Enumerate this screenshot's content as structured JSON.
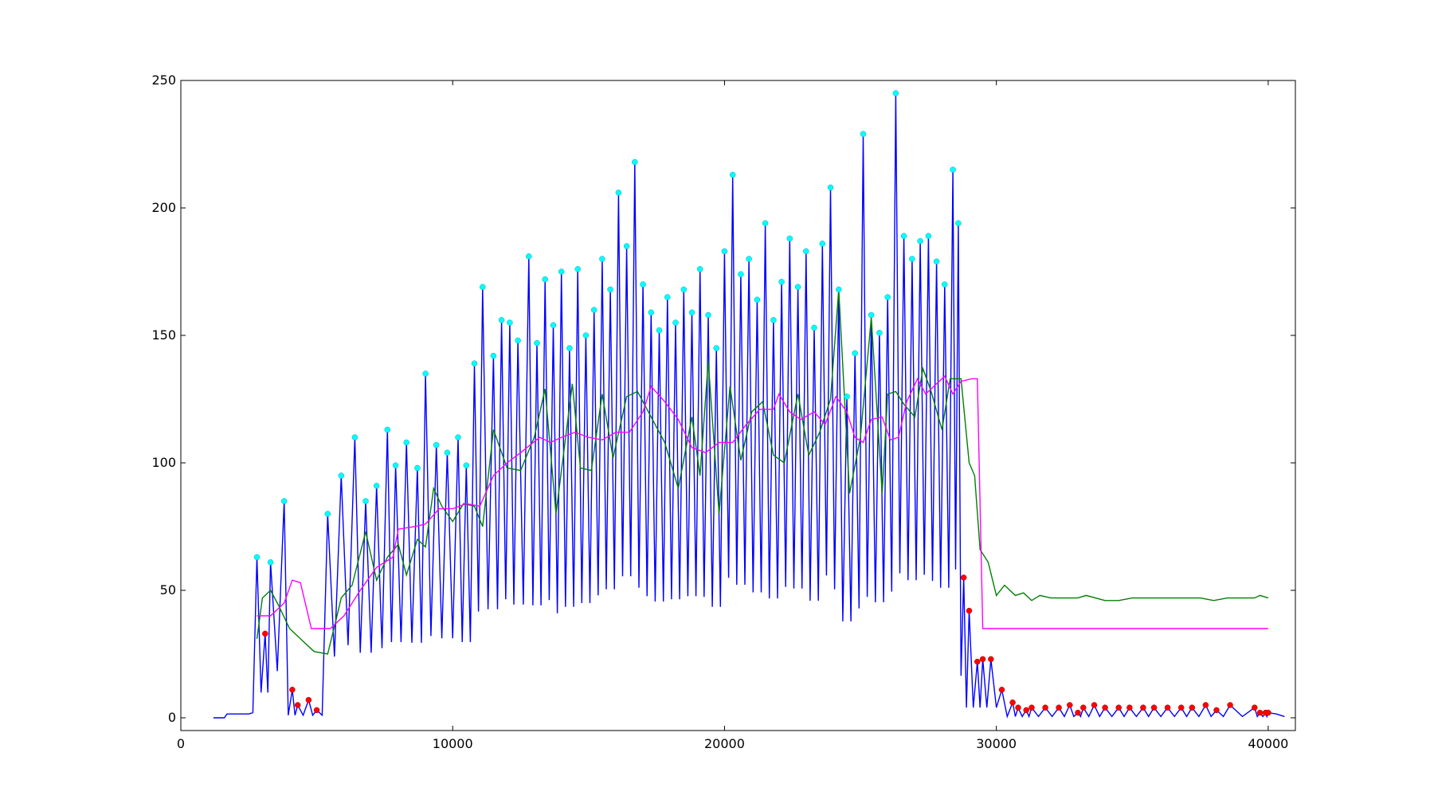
{
  "chart_data": {
    "type": "line",
    "title": "",
    "xlabel": "",
    "ylabel": "",
    "xlim": [
      0,
      41000
    ],
    "ylim": [
      -5,
      250
    ],
    "grid": false,
    "legend": "none",
    "x_ticks": [
      {
        "value": 0,
        "label": "0"
      },
      {
        "value": 10000,
        "label": "10000"
      },
      {
        "value": 20000,
        "label": "20000"
      },
      {
        "value": 30000,
        "label": "30000"
      },
      {
        "value": 40000,
        "label": "40000"
      }
    ],
    "y_ticks": [
      {
        "value": 0,
        "label": "0"
      },
      {
        "value": 50,
        "label": "50"
      },
      {
        "value": 100,
        "label": "100"
      },
      {
        "value": 150,
        "label": "150"
      },
      {
        "value": 200,
        "label": "200"
      },
      {
        "value": 250,
        "label": "250"
      }
    ],
    "colors": {
      "signal": "#0000ff",
      "smooth": "#008000",
      "moving_average": "#ff00ff",
      "peak_marker": "#00ffff",
      "low_peak_marker": "#ff0000"
    },
    "peaks": [
      [
        2800,
        63
      ],
      [
        3300,
        61
      ],
      [
        3800,
        85
      ],
      [
        5400,
        80
      ],
      [
        5900,
        95
      ],
      [
        6400,
        110
      ],
      [
        6800,
        85
      ],
      [
        7200,
        91
      ],
      [
        7600,
        113
      ],
      [
        7900,
        99
      ],
      [
        8300,
        108
      ],
      [
        8700,
        98
      ],
      [
        9000,
        135
      ],
      [
        9400,
        107
      ],
      [
        9800,
        104
      ],
      [
        10200,
        110
      ],
      [
        10500,
        99
      ],
      [
        10800,
        139
      ],
      [
        11100,
        169
      ],
      [
        11500,
        142
      ],
      [
        11800,
        156
      ],
      [
        12100,
        155
      ],
      [
        12400,
        148
      ],
      [
        12800,
        181
      ],
      [
        13100,
        147
      ],
      [
        13400,
        172
      ],
      [
        13700,
        154
      ],
      [
        14000,
        175
      ],
      [
        14300,
        145
      ],
      [
        14600,
        176
      ],
      [
        14900,
        150
      ],
      [
        15200,
        160
      ],
      [
        15500,
        180
      ],
      [
        15800,
        168
      ],
      [
        16100,
        206
      ],
      [
        16400,
        185
      ],
      [
        16700,
        218
      ],
      [
        17000,
        170
      ],
      [
        17300,
        159
      ],
      [
        17600,
        152
      ],
      [
        17900,
        165
      ],
      [
        18200,
        155
      ],
      [
        18500,
        168
      ],
      [
        18800,
        159
      ],
      [
        19100,
        176
      ],
      [
        19400,
        158
      ],
      [
        19700,
        145
      ],
      [
        20000,
        183
      ],
      [
        20300,
        213
      ],
      [
        20600,
        174
      ],
      [
        20900,
        180
      ],
      [
        21200,
        164
      ],
      [
        21500,
        194
      ],
      [
        21800,
        156
      ],
      [
        22100,
        171
      ],
      [
        22400,
        188
      ],
      [
        22700,
        169
      ],
      [
        23000,
        183
      ],
      [
        23300,
        153
      ],
      [
        23600,
        186
      ],
      [
        23900,
        208
      ],
      [
        24200,
        168
      ],
      [
        24500,
        126
      ],
      [
        24800,
        143
      ],
      [
        25100,
        229
      ],
      [
        25400,
        158
      ],
      [
        25700,
        151
      ],
      [
        26000,
        165
      ],
      [
        26300,
        245
      ],
      [
        26600,
        189
      ],
      [
        26900,
        180
      ],
      [
        27200,
        187
      ],
      [
        27500,
        189
      ],
      [
        27800,
        179
      ],
      [
        28100,
        170
      ],
      [
        28400,
        215
      ],
      [
        28600,
        194
      ]
    ],
    "low_peaks": [
      [
        3100,
        33
      ],
      [
        4100,
        11
      ],
      [
        4300,
        5
      ],
      [
        4700,
        7
      ],
      [
        5000,
        3
      ],
      [
        28800,
        55
      ],
      [
        29000,
        42
      ],
      [
        29300,
        22
      ],
      [
        29500,
        23
      ],
      [
        29800,
        23
      ],
      [
        30200,
        11
      ],
      [
        30600,
        6
      ],
      [
        30800,
        4
      ],
      [
        31100,
        3
      ],
      [
        31300,
        4
      ],
      [
        31800,
        4
      ],
      [
        32300,
        4
      ],
      [
        32700,
        5
      ],
      [
        33000,
        2
      ],
      [
        33200,
        4
      ],
      [
        33600,
        5
      ],
      [
        34000,
        4
      ],
      [
        34500,
        4
      ],
      [
        34900,
        4
      ],
      [
        35400,
        4
      ],
      [
        35800,
        4
      ],
      [
        36300,
        4
      ],
      [
        36800,
        4
      ],
      [
        37200,
        4
      ],
      [
        37700,
        5
      ],
      [
        38100,
        3
      ],
      [
        38600,
        5
      ],
      [
        39500,
        4
      ],
      [
        39700,
        2
      ],
      [
        39900,
        2
      ],
      [
        40000,
        2
      ]
    ],
    "series": [
      {
        "color": "#008000",
        "points": [
          [
            2800,
            31
          ],
          [
            3000,
            47
          ],
          [
            3300,
            50
          ],
          [
            3600,
            44
          ],
          [
            4000,
            35
          ],
          [
            4500,
            30
          ],
          [
            4900,
            26
          ],
          [
            5400,
            25
          ],
          [
            5700,
            38
          ],
          [
            5900,
            47
          ],
          [
            6300,
            52
          ],
          [
            6800,
            73
          ],
          [
            7200,
            54
          ],
          [
            7600,
            63
          ],
          [
            8000,
            68
          ],
          [
            8300,
            56
          ],
          [
            8700,
            70
          ],
          [
            9000,
            67
          ],
          [
            9300,
            90
          ],
          [
            9600,
            83
          ],
          [
            10000,
            77
          ],
          [
            10400,
            84
          ],
          [
            10800,
            83
          ],
          [
            11100,
            75
          ],
          [
            11500,
            113
          ],
          [
            12000,
            98
          ],
          [
            12500,
            97
          ],
          [
            13000,
            110
          ],
          [
            13400,
            129
          ],
          [
            13800,
            80
          ],
          [
            14400,
            131
          ],
          [
            14700,
            98
          ],
          [
            15100,
            97
          ],
          [
            15500,
            127
          ],
          [
            15900,
            102
          ],
          [
            16400,
            126
          ],
          [
            16800,
            128
          ],
          [
            17300,
            118
          ],
          [
            17800,
            108
          ],
          [
            18300,
            90
          ],
          [
            18800,
            118
          ],
          [
            19100,
            95
          ],
          [
            19400,
            140
          ],
          [
            19800,
            80
          ],
          [
            20200,
            130
          ],
          [
            20600,
            101
          ],
          [
            21000,
            120
          ],
          [
            21400,
            124
          ],
          [
            21800,
            103
          ],
          [
            22200,
            100
          ],
          [
            22700,
            127
          ],
          [
            23100,
            103
          ],
          [
            23500,
            112
          ],
          [
            23900,
            125
          ],
          [
            24200,
            168
          ],
          [
            24600,
            88
          ],
          [
            25000,
            110
          ],
          [
            25400,
            157
          ],
          [
            25800,
            88
          ],
          [
            26000,
            127
          ],
          [
            26300,
            128
          ],
          [
            26600,
            123
          ],
          [
            27000,
            118
          ],
          [
            27300,
            137
          ],
          [
            27600,
            128
          ],
          [
            28000,
            113
          ],
          [
            28300,
            133
          ],
          [
            28700,
            133
          ],
          [
            29000,
            100
          ],
          [
            29200,
            95
          ],
          [
            29400,
            66
          ],
          [
            29700,
            61
          ],
          [
            30000,
            48
          ],
          [
            30300,
            52
          ],
          [
            30700,
            48
          ],
          [
            31000,
            49
          ],
          [
            31300,
            46
          ],
          [
            31600,
            48
          ],
          [
            32000,
            47
          ],
          [
            32500,
            47
          ],
          [
            33000,
            47
          ],
          [
            33300,
            48
          ],
          [
            34000,
            46
          ],
          [
            34500,
            46
          ],
          [
            35000,
            47
          ],
          [
            35500,
            47
          ],
          [
            36000,
            47
          ],
          [
            36500,
            47
          ],
          [
            37000,
            47
          ],
          [
            37500,
            47
          ],
          [
            38000,
            46
          ],
          [
            38500,
            47
          ],
          [
            39000,
            47
          ],
          [
            39500,
            47
          ],
          [
            39700,
            48
          ],
          [
            40000,
            47
          ]
        ]
      },
      {
        "color": "#ff00ff",
        "points": [
          [
            2800,
            40
          ],
          [
            3300,
            40
          ],
          [
            3800,
            45
          ],
          [
            4100,
            54
          ],
          [
            4400,
            53
          ],
          [
            4800,
            35
          ],
          [
            5500,
            35
          ],
          [
            6000,
            40
          ],
          [
            6600,
            50
          ],
          [
            7200,
            59
          ],
          [
            7800,
            63
          ],
          [
            8000,
            74
          ],
          [
            8600,
            75
          ],
          [
            9000,
            76
          ],
          [
            9500,
            82
          ],
          [
            10000,
            82
          ],
          [
            10500,
            84
          ],
          [
            11000,
            83
          ],
          [
            11500,
            95
          ],
          [
            12000,
            100
          ],
          [
            12500,
            104
          ],
          [
            13200,
            110
          ],
          [
            13600,
            108
          ],
          [
            14000,
            110
          ],
          [
            14500,
            112
          ],
          [
            15000,
            110
          ],
          [
            15500,
            109
          ],
          [
            16000,
            112
          ],
          [
            16500,
            112
          ],
          [
            17000,
            120
          ],
          [
            17300,
            130
          ],
          [
            17800,
            124
          ],
          [
            18300,
            117
          ],
          [
            18800,
            106
          ],
          [
            19300,
            104
          ],
          [
            19800,
            108
          ],
          [
            20300,
            108
          ],
          [
            20800,
            115
          ],
          [
            21300,
            121
          ],
          [
            21800,
            121
          ],
          [
            22000,
            127
          ],
          [
            22400,
            120
          ],
          [
            22800,
            117
          ],
          [
            23300,
            120
          ],
          [
            23700,
            115
          ],
          [
            24100,
            126
          ],
          [
            24500,
            120
          ],
          [
            24800,
            110
          ],
          [
            25100,
            108
          ],
          [
            25400,
            117
          ],
          [
            25800,
            118
          ],
          [
            26100,
            109
          ],
          [
            26400,
            110
          ],
          [
            26700,
            124
          ],
          [
            27100,
            133
          ],
          [
            27400,
            127
          ],
          [
            27800,
            131
          ],
          [
            28100,
            134
          ],
          [
            28400,
            127
          ],
          [
            28700,
            132
          ],
          [
            29100,
            133
          ],
          [
            29300,
            133
          ],
          [
            29500,
            35
          ],
          [
            40000,
            35
          ]
        ]
      }
    ]
  }
}
